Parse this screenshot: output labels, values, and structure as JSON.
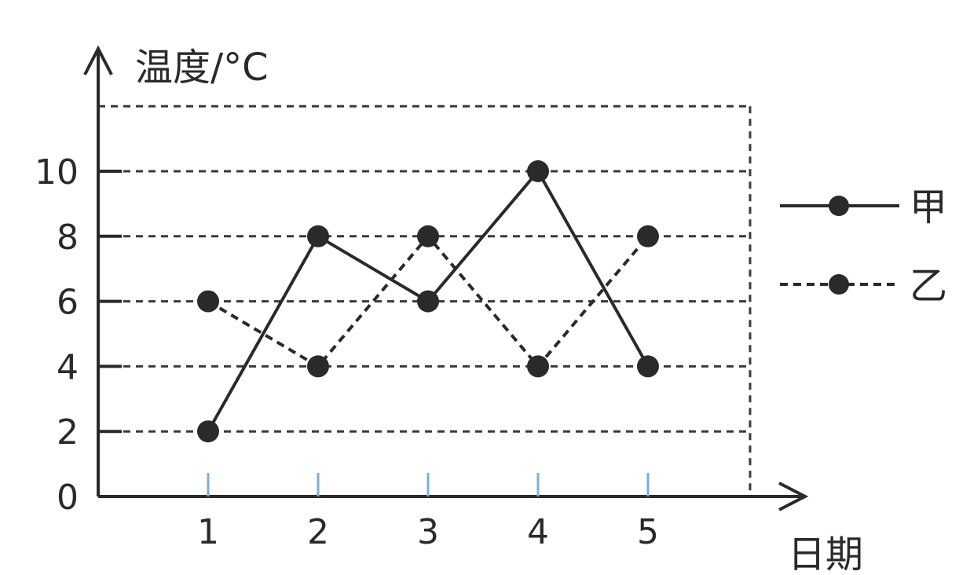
{
  "chart_data": {
    "type": "line",
    "ylabel": "温度/°C",
    "xlabel": "日期",
    "x": [
      1,
      2,
      3,
      4,
      5
    ],
    "yticks": [
      0,
      2,
      4,
      6,
      8,
      10
    ],
    "ylim": [
      0,
      12
    ],
    "xlim": [
      0,
      6.5
    ],
    "grid": true,
    "legend_position": "right",
    "series": [
      {
        "name": "甲",
        "values": [
          2,
          8,
          6,
          10,
          4
        ],
        "line_style": "solid",
        "color": "#2a2a2a"
      },
      {
        "name": "乙",
        "values": [
          6,
          4,
          8,
          4,
          8
        ],
        "line_style": "dashed",
        "color": "#2a2a2a"
      }
    ]
  }
}
